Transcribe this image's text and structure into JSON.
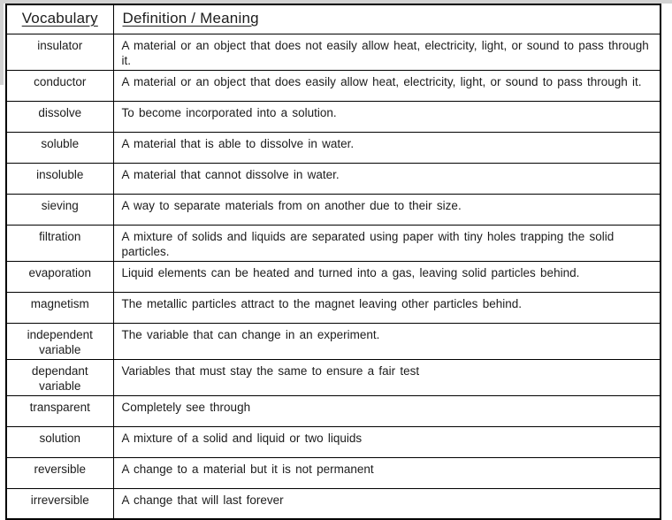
{
  "page": {
    "background_color": "#ffffff",
    "edge_strip_color": "#d3d3d3",
    "border_color": "#000000",
    "text_color": "#1c1c1c"
  },
  "table": {
    "headers": {
      "vocabulary": "Vocabulary",
      "definition": "Definition / Meaning"
    },
    "rows": [
      {
        "term": "insulator",
        "definition": "A material or an object that does not easily allow heat, electricity, light, or sound to pass through it."
      },
      {
        "term": "conductor",
        "definition": "A material or an object that does easily allow heat, electricity, light, or sound to pass through it."
      },
      {
        "term": "dissolve",
        "definition": "To become incorporated into a solution."
      },
      {
        "term": "soluble",
        "definition": "A material that is able to dissolve in water."
      },
      {
        "term": "insoluble",
        "definition": "A material that cannot dissolve in water."
      },
      {
        "term": "sieving",
        "definition": "A way to separate materials from on another due to their size."
      },
      {
        "term": "filtration",
        "definition": "A mixture of solids and liquids are separated using paper with tiny holes trapping the solid particles."
      },
      {
        "term": "evaporation",
        "definition": "Liquid elements can be heated and turned into a gas, leaving solid particles behind."
      },
      {
        "term": "magnetism",
        "definition": "The metallic particles attract to the magnet leaving other particles behind."
      },
      {
        "term": "independent variable",
        "definition": "The variable that can change in an experiment."
      },
      {
        "term": "dependant variable",
        "definition": "Variables that must stay the same to ensure a fair test"
      },
      {
        "term": "transparent",
        "definition": "Completely see through"
      },
      {
        "term": "solution",
        "definition": "A mixture of a solid and liquid or two liquids"
      },
      {
        "term": "reversible",
        "definition": "A change to a material but it is not permanent"
      },
      {
        "term": "irreversible",
        "definition": "A change that will last forever"
      }
    ]
  }
}
